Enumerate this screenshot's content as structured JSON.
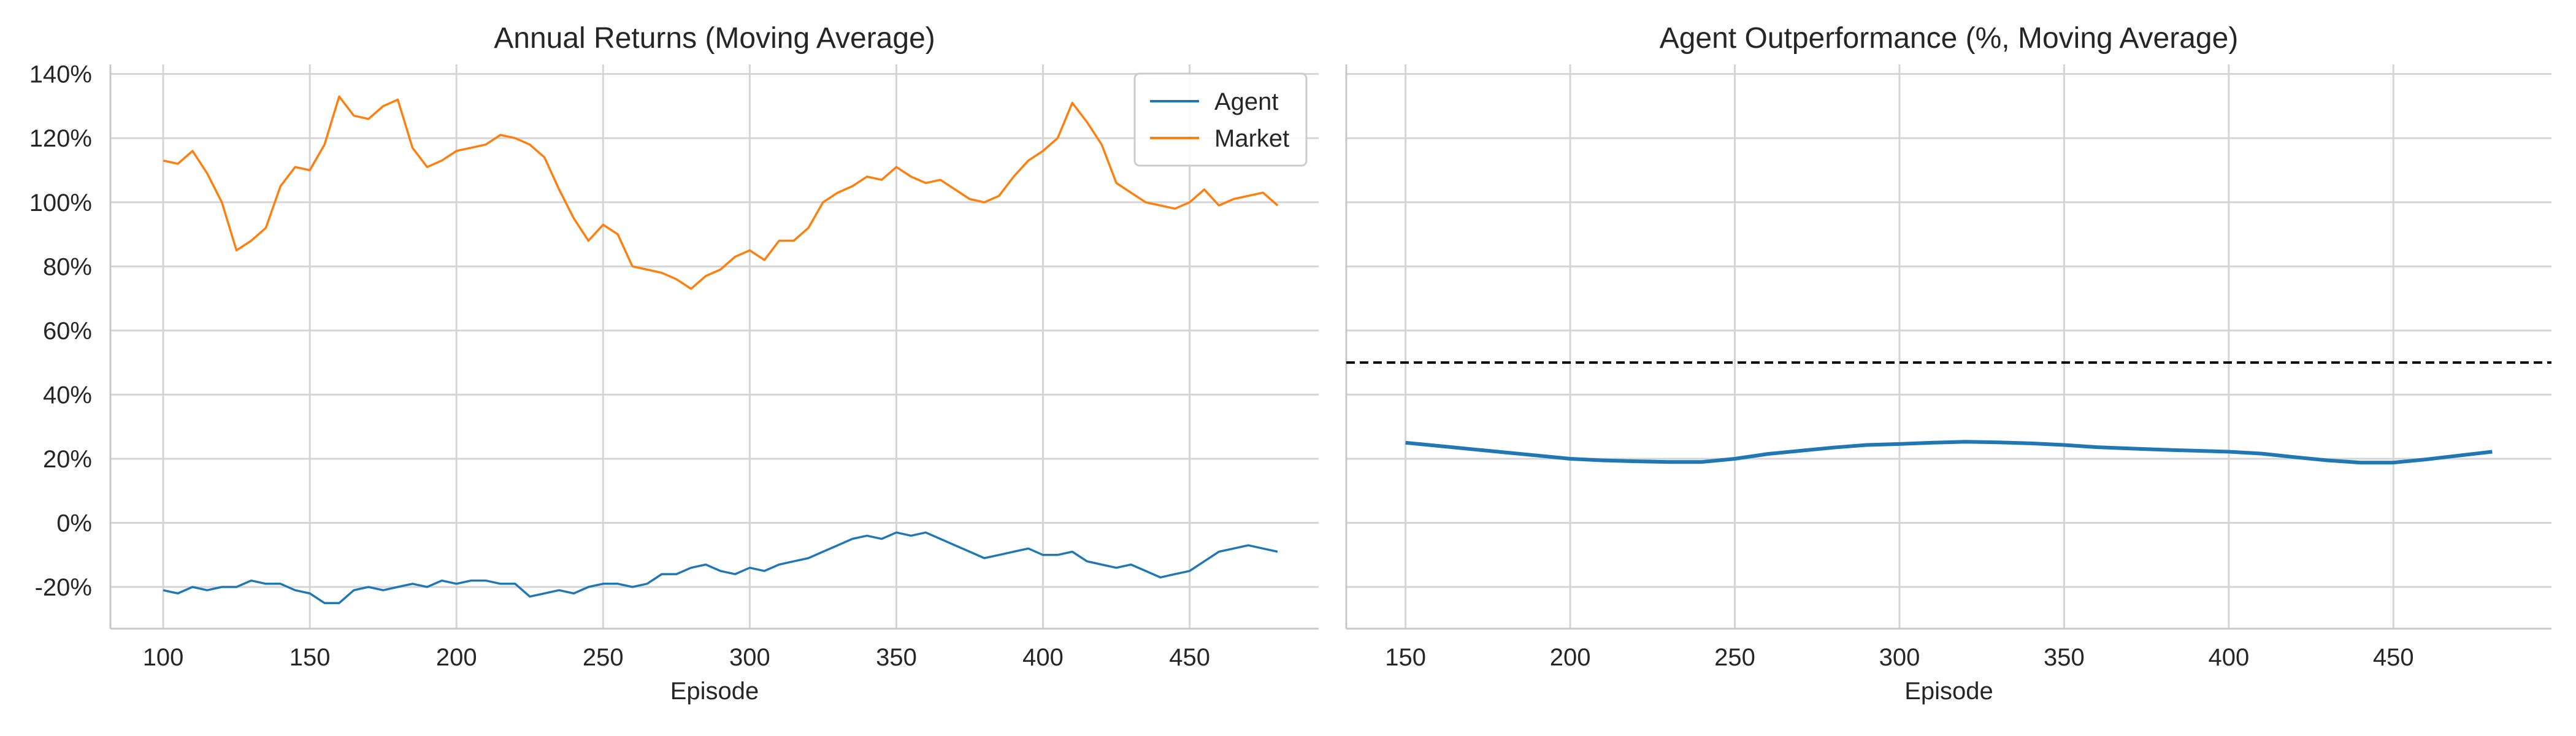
{
  "chart_data": [
    {
      "type": "line",
      "title": "Annual Returns (Moving Average)",
      "xlabel": "Episode",
      "ylabel": "",
      "xlim": [
        82,
        494
      ],
      "ylim": [
        -33,
        143
      ],
      "xticks": [
        100,
        150,
        200,
        250,
        300,
        350,
        400,
        450
      ],
      "xtick_labels": [
        "100",
        "150",
        "200",
        "250",
        "300",
        "350",
        "400",
        "450"
      ],
      "yticks": [
        -20,
        0,
        20,
        40,
        60,
        80,
        100,
        120,
        140
      ],
      "ytick_labels": [
        "-20%",
        "0%",
        "20%",
        "40%",
        "60%",
        "80%",
        "100%",
        "120%",
        "140%"
      ],
      "grid": true,
      "legend": "top-right",
      "series": [
        {
          "name": "Agent",
          "color": "#1f77b4",
          "x": [
            100,
            105,
            110,
            115,
            120,
            125,
            130,
            135,
            140,
            145,
            150,
            155,
            160,
            165,
            170,
            175,
            180,
            185,
            190,
            195,
            200,
            205,
            210,
            215,
            220,
            225,
            230,
            235,
            240,
            245,
            250,
            255,
            260,
            265,
            270,
            275,
            280,
            285,
            290,
            295,
            300,
            305,
            310,
            315,
            320,
            325,
            330,
            335,
            340,
            345,
            350,
            355,
            360,
            365,
            370,
            375,
            380,
            385,
            390,
            395,
            400,
            405,
            410,
            415,
            420,
            425,
            430,
            435,
            440,
            445,
            450,
            455,
            460,
            465,
            470,
            475,
            480
          ],
          "values": [
            -21,
            -22,
            -20,
            -21,
            -20,
            -20,
            -18,
            -19,
            -19,
            -21,
            -22,
            -25,
            -25,
            -21,
            -20,
            -21,
            -20,
            -19,
            -20,
            -18,
            -19,
            -18,
            -18,
            -19,
            -19,
            -23,
            -22,
            -21,
            -22,
            -20,
            -19,
            -19,
            -20,
            -19,
            -16,
            -16,
            -14,
            -13,
            -15,
            -16,
            -14,
            -15,
            -13,
            -12,
            -11,
            -9,
            -7,
            -5,
            -4,
            -5,
            -3,
            -4,
            -3,
            -5,
            -7,
            -9,
            -11,
            -10,
            -9,
            -8,
            -10,
            -10,
            -9,
            -12,
            -13,
            -14,
            -13,
            -15,
            -17,
            -16,
            -15,
            -12,
            -9,
            -8,
            -7,
            -8,
            -9
          ]
        },
        {
          "name": "Market",
          "color": "#ff7f0e",
          "x": [
            100,
            105,
            110,
            115,
            120,
            125,
            130,
            135,
            140,
            145,
            150,
            155,
            160,
            165,
            170,
            175,
            180,
            185,
            190,
            195,
            200,
            205,
            210,
            215,
            220,
            225,
            230,
            235,
            240,
            245,
            250,
            255,
            260,
            265,
            270,
            275,
            280,
            285,
            290,
            295,
            300,
            305,
            310,
            315,
            320,
            325,
            330,
            335,
            340,
            345,
            350,
            355,
            360,
            365,
            370,
            375,
            380,
            385,
            390,
            395,
            400,
            405,
            410,
            415,
            420,
            425,
            430,
            435,
            440,
            445,
            450,
            455,
            460,
            465,
            470,
            475,
            480
          ],
          "values": [
            113,
            112,
            116,
            109,
            100,
            85,
            88,
            92,
            105,
            111,
            110,
            118,
            133,
            127,
            126,
            130,
            132,
            117,
            111,
            113,
            116,
            117,
            118,
            121,
            120,
            118,
            114,
            104,
            95,
            88,
            93,
            90,
            80,
            79,
            78,
            76,
            73,
            77,
            79,
            83,
            85,
            82,
            88,
            88,
            92,
            100,
            103,
            105,
            108,
            107,
            111,
            108,
            106,
            107,
            104,
            101,
            100,
            102,
            108,
            113,
            116,
            120,
            131,
            125,
            118,
            106,
            103,
            100,
            99,
            98,
            100,
            104,
            99,
            101,
            102,
            103,
            99
          ]
        }
      ]
    },
    {
      "type": "line",
      "title": "Agent Outperformance (%, Moving Average)",
      "xlabel": "Episode",
      "ylabel": "",
      "xlim": [
        132,
        498
      ],
      "ylim": [
        -33,
        143
      ],
      "xticks": [
        150,
        200,
        250,
        300,
        350,
        400,
        450
      ],
      "xtick_labels": [
        "150",
        "200",
        "250",
        "300",
        "350",
        "400",
        "450"
      ],
      "yticks": [
        -20,
        0,
        20,
        40,
        60,
        80,
        100,
        120,
        140
      ],
      "grid": true,
      "reference_line": {
        "y": 50,
        "style": "dashed",
        "color": "#000000"
      },
      "series": [
        {
          "color": "#1f77b4",
          "x": [
            150,
            160,
            170,
            180,
            190,
            200,
            210,
            220,
            230,
            240,
            250,
            260,
            270,
            280,
            290,
            300,
            310,
            320,
            330,
            340,
            350,
            360,
            370,
            380,
            390,
            400,
            410,
            420,
            430,
            440,
            450,
            460,
            470,
            480
          ],
          "values": [
            25,
            24,
            23,
            22,
            21,
            20,
            19.5,
            19.2,
            19.0,
            19.0,
            20,
            21.5,
            22.5,
            23.5,
            24.3,
            24.6,
            25.0,
            25.3,
            25.1,
            24.8,
            24.3,
            23.6,
            23.2,
            22.8,
            22.5,
            22.2,
            21.6,
            20.5,
            19.5,
            18.8,
            18.8,
            19.8,
            21.0,
            22.2
          ]
        }
      ]
    }
  ]
}
